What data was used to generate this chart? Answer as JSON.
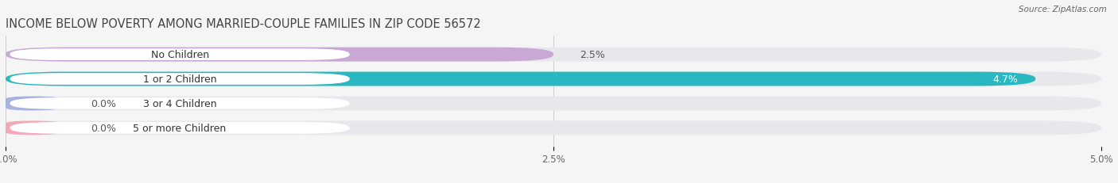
{
  "title": "INCOME BELOW POVERTY AMONG MARRIED-COUPLE FAMILIES IN ZIP CODE 56572",
  "source": "Source: ZipAtlas.com",
  "categories": [
    "No Children",
    "1 or 2 Children",
    "3 or 4 Children",
    "5 or more Children"
  ],
  "values": [
    2.5,
    4.7,
    0.0,
    0.0
  ],
  "bar_colors": [
    "#c9a8d4",
    "#29b8c2",
    "#a8b2e0",
    "#f4a8b8"
  ],
  "background_color": "#f5f5f5",
  "bar_bg_color": "#e8e8ec",
  "label_bg_color": "#ffffff",
  "xlim": [
    0,
    5.0
  ],
  "xticks": [
    0.0,
    2.5,
    5.0
  ],
  "xtick_labels": [
    "0.0%",
    "2.5%",
    "5.0%"
  ],
  "title_fontsize": 10.5,
  "label_fontsize": 9,
  "value_fontsize": 9,
  "bar_height": 0.58,
  "title_color": "#444444",
  "source_color": "#666666",
  "label_color": "#333333",
  "value_color_dark": "#555555",
  "value_color_light": "#ffffff",
  "grid_color": "#cccccc"
}
